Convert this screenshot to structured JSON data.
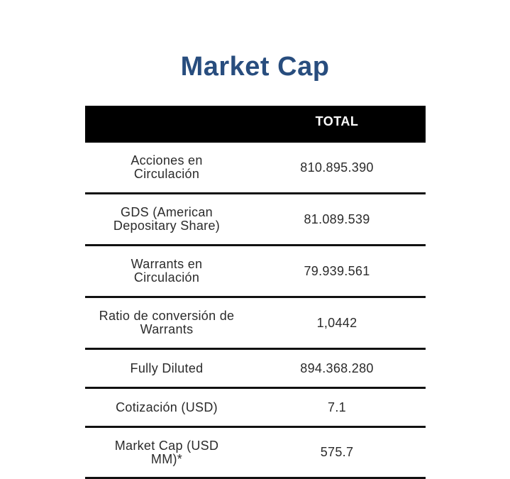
{
  "title": "Market Cap",
  "colors": {
    "title": "#284d7e",
    "header_bg": "#000000",
    "text": "#2b2b2b"
  },
  "table": {
    "header": "TOTAL",
    "rows": [
      {
        "label": "Acciones en Circulación",
        "value": "810.895.390"
      },
      {
        "label": "GDS (American Depositary Share)",
        "value": "81.089.539"
      },
      {
        "label": "Warrants en Circulación",
        "value": "79.939.561"
      },
      {
        "label": "Ratio de conversión de Warrants",
        "value": "1,0442"
      },
      {
        "label": "Fully Diluted",
        "value": "894.368.280"
      },
      {
        "label": "Cotización (USD)",
        "value": "7.1"
      },
      {
        "label": "Market Cap (USD MM)*",
        "value": "575.7"
      }
    ]
  }
}
